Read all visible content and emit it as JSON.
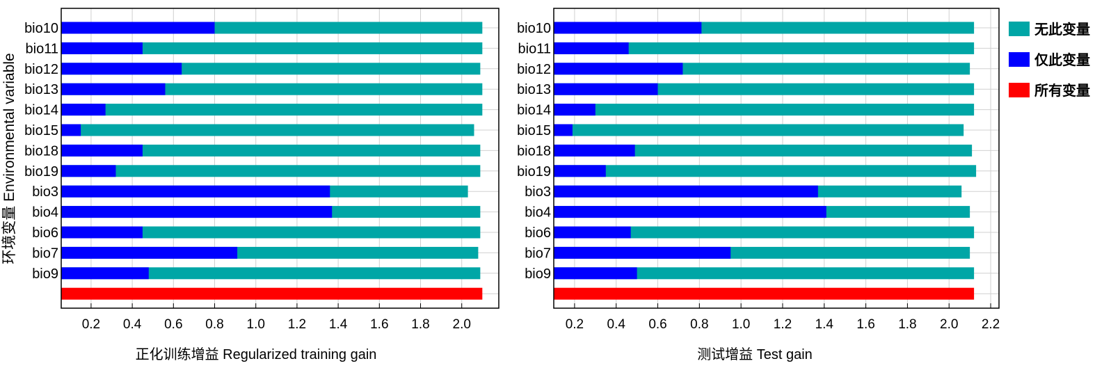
{
  "chart_data": [
    {
      "type": "bar",
      "orientation": "horizontal",
      "title": "",
      "xlabel": "正化训练增益 Regularized training gain",
      "ylabel": "环境变量 Environmental variable",
      "xlim": [
        0.055,
        2.18
      ],
      "xticks": [
        "0.2",
        "0.4",
        "0.6",
        "0.8",
        "1.0",
        "1.2",
        "1.4",
        "1.6",
        "1.8",
        "2.0"
      ],
      "categories": [
        "bio10",
        "bio11",
        "bio12",
        "bio13",
        "bio14",
        "bio15",
        "bio18",
        "bio19",
        "bio3",
        "bio4",
        "bio6",
        "bio7",
        "bio9"
      ],
      "series": [
        {
          "name": "无此变量",
          "values": [
            2.1,
            2.1,
            2.09,
            2.1,
            2.1,
            2.06,
            2.09,
            2.09,
            2.03,
            2.09,
            2.09,
            2.08,
            2.09
          ]
        },
        {
          "name": "仅此变量",
          "values": [
            0.8,
            0.45,
            0.64,
            0.56,
            0.27,
            0.15,
            0.45,
            0.32,
            1.36,
            1.37,
            0.45,
            0.91,
            0.48
          ]
        }
      ],
      "all_variables": 2.1,
      "grid": true
    },
    {
      "type": "bar",
      "orientation": "horizontal",
      "title": "",
      "xlabel": "测试增益 Test gain",
      "ylabel": "",
      "xlim": [
        0.1,
        2.24
      ],
      "xticks": [
        "0.2",
        "0.4",
        "0.6",
        "0.8",
        "1.0",
        "1.2",
        "1.4",
        "1.6",
        "1.8",
        "2.0",
        "2.2"
      ],
      "categories": [
        "bio10",
        "bio11",
        "bio12",
        "bio13",
        "bio14",
        "bio15",
        "bio18",
        "bio19",
        "bio3",
        "bio4",
        "bio6",
        "bio7",
        "bio9"
      ],
      "series": [
        {
          "name": "无此变量",
          "values": [
            2.12,
            2.12,
            2.1,
            2.12,
            2.12,
            2.07,
            2.11,
            2.13,
            2.06,
            2.1,
            2.12,
            2.1,
            2.12
          ]
        },
        {
          "name": "仅此变量",
          "values": [
            0.81,
            0.46,
            0.72,
            0.6,
            0.3,
            0.19,
            0.49,
            0.35,
            1.37,
            1.41,
            0.47,
            0.95,
            0.5
          ]
        }
      ],
      "all_variables": 2.12,
      "grid": true
    }
  ],
  "legend": {
    "placement": "right",
    "items": [
      {
        "label": "无此变量",
        "color": "#00a6a6"
      },
      {
        "label": "仅此变量",
        "color": "#0000ff"
      },
      {
        "label": "所有变量",
        "color": "#ff0000"
      }
    ]
  }
}
